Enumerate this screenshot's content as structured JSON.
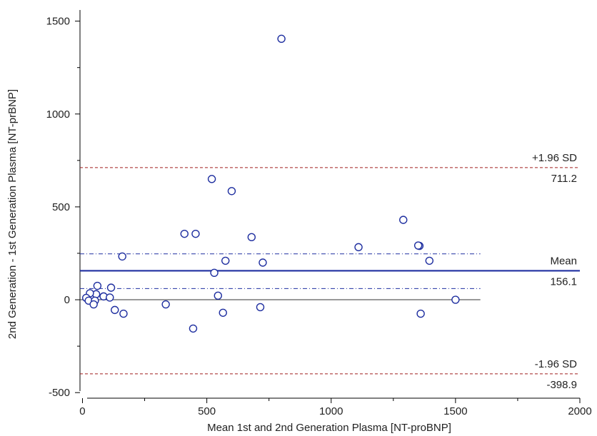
{
  "chart_data": {
    "type": "scatter",
    "title": "",
    "xlabel": "Mean 1st and 2nd Generation Plasma [NT-proBNP]",
    "ylabel": "2nd Generation - 1st Generation Plasma [NT-prBNP]",
    "xlim": [
      -10,
      2000
    ],
    "ylim": [
      -530,
      1560
    ],
    "xticks": [
      0,
      500,
      1000,
      1500,
      2000
    ],
    "xtick_labels": [
      "0",
      "500",
      "1000",
      "1500",
      "2000"
    ],
    "x_minor_ticks": [
      250,
      750,
      1250,
      1750
    ],
    "yticks": [
      -500,
      0,
      500,
      1000,
      1500
    ],
    "ytick_labels": [
      "-500",
      "0",
      "500",
      "1000",
      "1500"
    ],
    "y_minor_ticks": [
      -250,
      250,
      750,
      1250
    ],
    "grid": false,
    "reference_lines": {
      "mean": {
        "label": "Mean",
        "value_label": "156.1",
        "y": 156.1,
        "color": "#1f2fa0",
        "style": "solid"
      },
      "upper_loa": {
        "label": "+1.96 SD",
        "value_label": "711.2",
        "y": 711.2,
        "color": "#a01f1f",
        "style": "dashed"
      },
      "lower_loa": {
        "label": "-1.96 SD",
        "value_label": "-398.9",
        "y": -398.9,
        "color": "#a01f1f",
        "style": "dashed"
      },
      "mean_ci_upper": {
        "y": 247,
        "x_end": 1600,
        "color": "#1f2fa0",
        "style": "dash-dot"
      },
      "mean_ci_lower": {
        "y": 60,
        "x_end": 1600,
        "color": "#1f2fa0",
        "style": "dash-dot"
      },
      "zero": {
        "y": 0,
        "x_end": 1600,
        "color": "#333333",
        "style": "solid"
      }
    },
    "series": [
      {
        "marker_color": "#1f2fa0",
        "points": [
          {
            "x": 800,
            "y": 1405
          },
          {
            "x": 520,
            "y": 650
          },
          {
            "x": 600,
            "y": 585
          },
          {
            "x": 1290,
            "y": 430
          },
          {
            "x": 410,
            "y": 355
          },
          {
            "x": 455,
            "y": 355
          },
          {
            "x": 680,
            "y": 337
          },
          {
            "x": 1355,
            "y": 290
          },
          {
            "x": 1350,
            "y": 292
          },
          {
            "x": 1110,
            "y": 283
          },
          {
            "x": 160,
            "y": 233
          },
          {
            "x": 575,
            "y": 210
          },
          {
            "x": 1395,
            "y": 210
          },
          {
            "x": 725,
            "y": 200
          },
          {
            "x": 530,
            "y": 145
          },
          {
            "x": 60,
            "y": 75
          },
          {
            "x": 115,
            "y": 65
          },
          {
            "x": 545,
            "y": 22
          },
          {
            "x": 55,
            "y": 30
          },
          {
            "x": 30,
            "y": 35
          },
          {
            "x": 85,
            "y": 18
          },
          {
            "x": 110,
            "y": 12
          },
          {
            "x": 15,
            "y": 10
          },
          {
            "x": 25,
            "y": -5
          },
          {
            "x": 50,
            "y": -5
          },
          {
            "x": 1500,
            "y": 0
          },
          {
            "x": 45,
            "y": -25
          },
          {
            "x": 335,
            "y": -25
          },
          {
            "x": 715,
            "y": -40
          },
          {
            "x": 130,
            "y": -55
          },
          {
            "x": 165,
            "y": -75
          },
          {
            "x": 565,
            "y": -70
          },
          {
            "x": 1360,
            "y": -75
          },
          {
            "x": 445,
            "y": -155
          }
        ]
      }
    ]
  }
}
